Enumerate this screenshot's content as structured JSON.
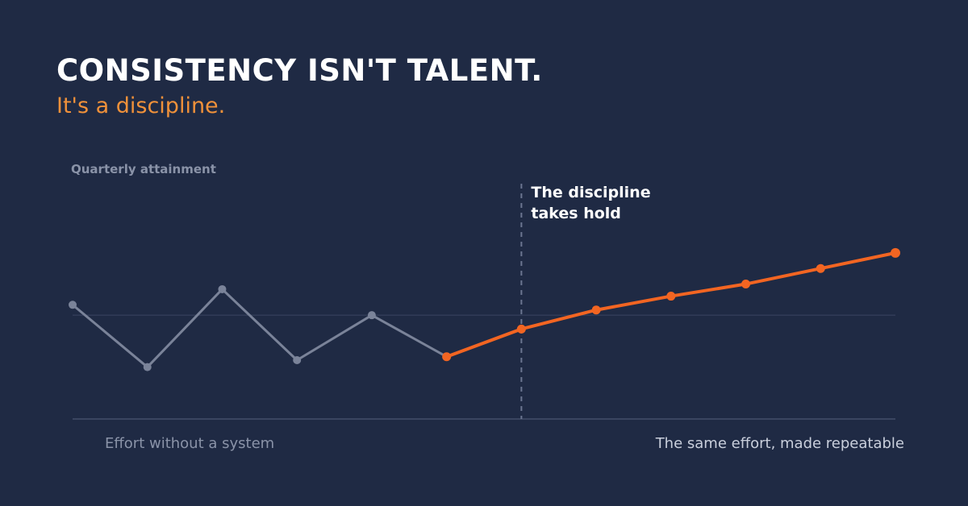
{
  "headline": "CONSISTENCY ISN'T TALENT.",
  "subheadline": "It's a discipline.",
  "colors": {
    "background": "#1f2a44",
    "before_series": "#7a8399",
    "after_series": "#f26522",
    "subheadline": "#f0913a"
  },
  "chart_data": {
    "type": "line",
    "title": "",
    "ylabel": "Quarterly attainment",
    "xlabel": "",
    "x": [
      1,
      2,
      3,
      4,
      5,
      6,
      7,
      8,
      9,
      10,
      11,
      12
    ],
    "series": [
      {
        "segment": "before",
        "x": [
          1,
          2,
          3,
          4,
          5,
          6
        ],
        "values": [
          100,
          64,
          109,
          68,
          94,
          70
        ]
      },
      {
        "segment": "after",
        "x": [
          6,
          7,
          8,
          9,
          10,
          11,
          12
        ],
        "values": [
          70,
          86,
          97,
          105,
          112,
          121,
          130
        ]
      }
    ],
    "reference_value": 94,
    "ylim": [
      34,
      170
    ],
    "divider_x": 7,
    "annotation": [
      "The discipline",
      "takes hold"
    ],
    "region_labels": {
      "left": "Effort without a system",
      "right": "The same effort, made repeatable"
    },
    "grid": false
  }
}
